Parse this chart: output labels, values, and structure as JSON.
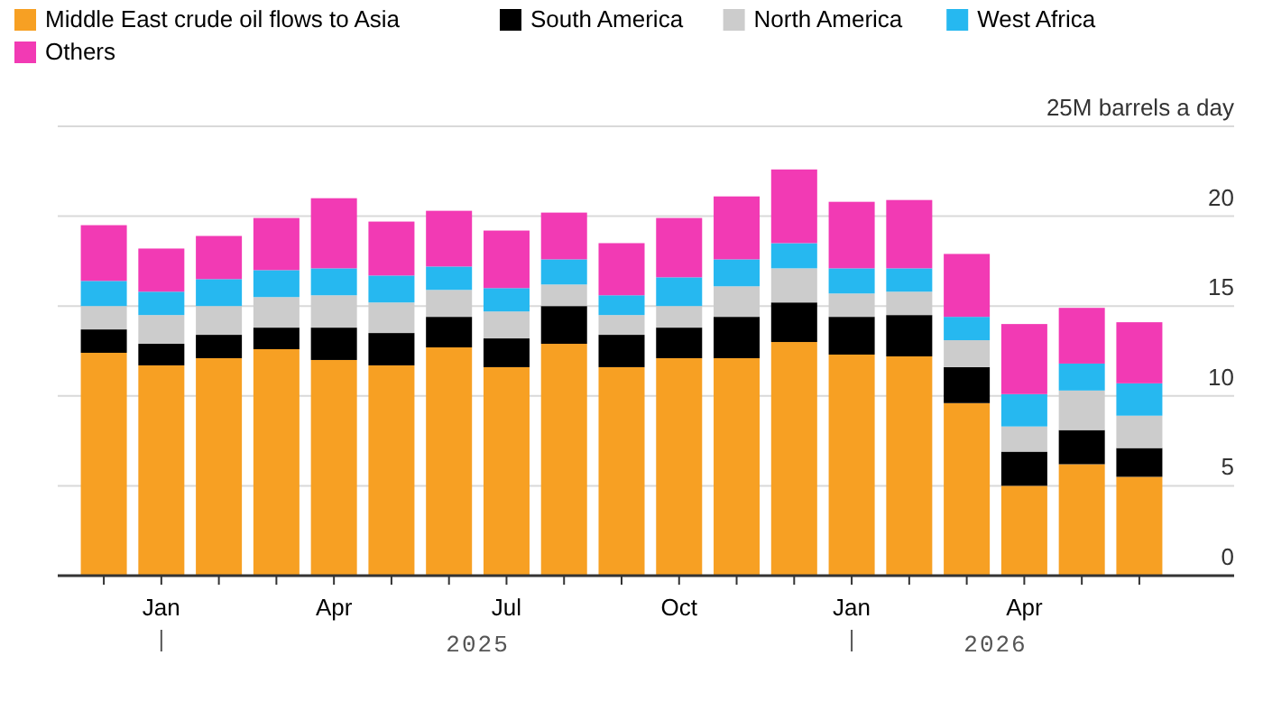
{
  "chart_data": {
    "type": "bar",
    "stacked": true,
    "categories": [
      null,
      "Jan",
      null,
      null,
      "Apr",
      null,
      null,
      "Jul",
      null,
      null,
      "Oct",
      null,
      null,
      "Jan",
      null,
      null,
      "Apr",
      null,
      null
    ],
    "series": [
      {
        "name": "Middle East crude oil flows to Asia",
        "color": "#f7a023",
        "values": [
          12.4,
          11.7,
          12.1,
          12.6,
          12.0,
          11.7,
          12.7,
          11.6,
          12.9,
          11.6,
          12.1,
          12.1,
          13.0,
          12.3,
          12.2,
          9.6,
          5.0,
          6.2,
          5.5
        ]
      },
      {
        "name": "South America",
        "color": "#000000",
        "values": [
          1.3,
          1.2,
          1.3,
          1.2,
          1.8,
          1.8,
          1.7,
          1.6,
          2.1,
          1.8,
          1.7,
          2.3,
          2.2,
          2.1,
          2.3,
          2.0,
          1.9,
          1.9,
          1.6
        ]
      },
      {
        "name": "North America",
        "color": "#cccccc",
        "values": [
          1.3,
          1.6,
          1.6,
          1.7,
          1.8,
          1.7,
          1.5,
          1.5,
          1.2,
          1.1,
          1.2,
          1.7,
          1.9,
          1.3,
          1.3,
          1.5,
          1.4,
          2.2,
          1.8
        ]
      },
      {
        "name": "West Africa",
        "color": "#26b8f0",
        "values": [
          1.4,
          1.3,
          1.5,
          1.5,
          1.5,
          1.5,
          1.3,
          1.3,
          1.4,
          1.1,
          1.6,
          1.5,
          1.4,
          1.4,
          1.3,
          1.3,
          1.8,
          1.5,
          1.8
        ]
      },
      {
        "name": "Others",
        "color": "#f23ab4",
        "values": [
          3.1,
          2.4,
          2.4,
          2.9,
          3.9,
          3.0,
          3.1,
          3.2,
          2.6,
          2.9,
          3.3,
          3.5,
          4.1,
          3.7,
          3.8,
          3.5,
          3.9,
          3.1,
          3.4
        ]
      }
    ],
    "ylim": [
      0,
      25
    ],
    "yticks": [
      0,
      5,
      10,
      15,
      20,
      {
        "value": 25,
        "label": "25M barrels a day"
      }
    ],
    "grid": "y",
    "legend": "top left",
    "annotations": [
      "2025",
      "2026"
    ]
  }
}
